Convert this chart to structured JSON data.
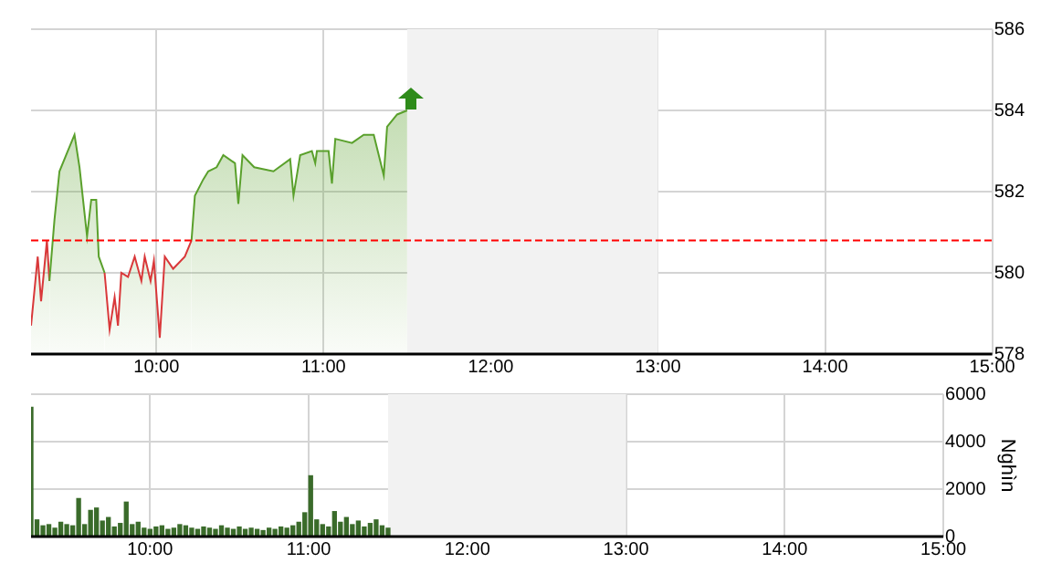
{
  "chart_data": [
    {
      "type": "area",
      "xlim": [
        9.25,
        15
      ],
      "xticks": [
        {
          "value": 10,
          "label": "10:00"
        },
        {
          "value": 11,
          "label": "11:00"
        },
        {
          "value": 12,
          "label": "12:00"
        },
        {
          "value": 13,
          "label": "13:00"
        },
        {
          "value": 14,
          "label": "14:00"
        },
        {
          "value": 15,
          "label": "15:00"
        }
      ],
      "ylim": [
        578,
        586
      ],
      "yticks": [
        578,
        580,
        582,
        584,
        586
      ],
      "grid": true,
      "legend": false,
      "series": [
        {
          "color": "#5aa02c",
          "colors": [
            "#d9383a",
            "#d9383a",
            "#d9383a",
            "#d9383a",
            "#d9383a",
            "#5aa02c",
            "#5aa02c",
            "#5aa02c",
            "#5aa02c",
            "#5aa02c",
            "#5aa02c",
            "#5aa02c",
            "#5aa02c",
            "#5aa02c",
            "#d9383a",
            "#d9383a",
            "#d9383a",
            "#d9383a",
            "#d9383a",
            "#d9383a",
            "#d9383a",
            "#d9383a",
            "#d9383a",
            "#d9383a",
            "#d9383a",
            "#d9383a",
            "#d9383a",
            "#d9383a",
            "#d9383a",
            "#d9383a",
            "#5aa02c",
            "#5aa02c",
            "#5aa02c",
            "#5aa02c",
            "#5aa02c",
            "#5aa02c",
            "#5aa02c",
            "#5aa02c",
            "#5aa02c",
            "#5aa02c",
            "#5aa02c",
            "#5aa02c",
            "#5aa02c",
            "#5aa02c",
            "#5aa02c",
            "#5aa02c",
            "#5aa02c",
            "#5aa02c",
            "#5aa02c",
            "#5aa02c",
            "#5aa02c",
            "#5aa02c",
            "#5aa02c",
            "#5aa02c",
            "#5aa02c",
            "#5aa02c"
          ],
          "x": [
            9.25,
            9.29,
            9.31,
            9.345,
            9.36,
            9.39,
            9.42,
            9.46,
            9.51,
            9.54,
            9.585,
            9.61,
            9.64,
            9.655,
            9.69,
            9.72,
            9.75,
            9.77,
            9.79,
            9.83,
            9.87,
            9.91,
            9.93,
            9.965,
            9.985,
            10.02,
            10.05,
            10.1,
            10.17,
            10.21,
            10.23,
            10.28,
            10.31,
            10.36,
            10.4,
            10.47,
            10.49,
            10.515,
            10.585,
            10.7,
            10.8,
            10.82,
            10.86,
            10.93,
            10.95,
            10.96,
            11.03,
            11.05,
            11.07,
            11.17,
            11.24,
            11.3,
            11.36,
            11.38,
            11.44,
            11.5
          ],
          "values": [
            578.7,
            580.4,
            579.3,
            580.8,
            579.8,
            581.3,
            582.5,
            582.9,
            583.4,
            582.6,
            580.9,
            581.8,
            581.8,
            580.4,
            580.0,
            578.6,
            579.4,
            578.7,
            580.0,
            579.9,
            580.4,
            579.8,
            580.4,
            579.8,
            580.3,
            578.4,
            580.4,
            580.1,
            580.4,
            580.8,
            581.9,
            582.3,
            582.5,
            582.6,
            582.9,
            582.7,
            581.7,
            582.9,
            582.6,
            582.5,
            582.8,
            581.9,
            582.9,
            583.0,
            582.7,
            583.0,
            583.0,
            582.2,
            583.3,
            583.2,
            583.4,
            583.4,
            582.4,
            583.6,
            583.9,
            584.0
          ]
        }
      ],
      "ref_lines": [
        {
          "axis": "y",
          "value": 580.8,
          "color": "#ff0000",
          "line_style": "dashed"
        }
      ],
      "bands": [
        {
          "axis": "x",
          "from": 11.5,
          "to": 13,
          "color": "#f2f2f2"
        }
      ]
    },
    {
      "type": "bar",
      "ylabel": "Nghìn",
      "xlim": [
        9.25,
        15
      ],
      "xticks": [
        {
          "value": 10,
          "label": "10:00"
        },
        {
          "value": 11,
          "label": "11:00"
        },
        {
          "value": 12,
          "label": "12:00"
        },
        {
          "value": 13,
          "label": "13:00"
        },
        {
          "value": 14,
          "label": "14:00"
        },
        {
          "value": 15,
          "label": "15:00"
        }
      ],
      "ylim": [
        0,
        6000
      ],
      "yticks": [
        0,
        2000,
        4000,
        6000
      ],
      "grid": true,
      "legend": false,
      "x": [
        9.25,
        9.2875,
        9.325,
        9.3625,
        9.4,
        9.4375,
        9.475,
        9.5125,
        9.55,
        9.5875,
        9.625,
        9.6625,
        9.7,
        9.7375,
        9.775,
        9.8125,
        9.85,
        9.8875,
        9.925,
        9.9625,
        10,
        10.0375,
        10.075,
        10.1125,
        10.15,
        10.1875,
        10.225,
        10.2625,
        10.3,
        10.3375,
        10.375,
        10.4125,
        10.45,
        10.4875,
        10.525,
        10.5625,
        10.6,
        10.6375,
        10.675,
        10.7125,
        10.75,
        10.7875,
        10.825,
        10.8625,
        10.9,
        10.9375,
        10.975,
        11.0125,
        11.05,
        11.0875,
        11.125,
        11.1625,
        11.2,
        11.2375,
        11.275,
        11.3125,
        11.35,
        11.3875,
        11.425,
        11.4625,
        11.5
      ],
      "series": [
        {
          "color": "#3a6b2a",
          "values": [
            5450,
            700,
            450,
            500,
            350,
            600,
            500,
            450,
            1600,
            500,
            1100,
            1200,
            650,
            800,
            400,
            550,
            1450,
            500,
            600,
            350,
            300,
            400,
            450,
            300,
            350,
            500,
            450,
            350,
            300,
            400,
            350,
            300,
            450,
            350,
            300,
            400,
            300,
            350,
            300,
            250,
            350,
            300,
            400,
            350,
            450,
            600,
            1000,
            2560,
            700,
            500,
            400,
            1050,
            600,
            800,
            500,
            650,
            400,
            550,
            700,
            450,
            350
          ]
        }
      ],
      "bands": [
        {
          "axis": "x",
          "from": 11.5,
          "to": 13,
          "color": "#f2f2f2"
        }
      ]
    }
  ]
}
